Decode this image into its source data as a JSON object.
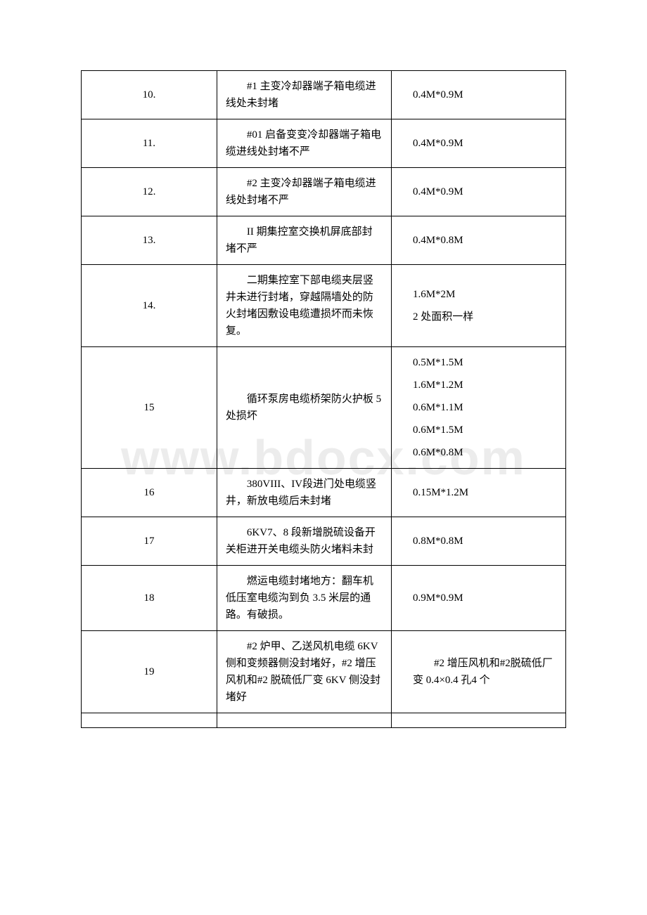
{
  "watermark": "www.bdocx.com",
  "rows": [
    {
      "num": "10.",
      "desc": "#1 主变冷却器端子箱电缆进线处未封堵",
      "dim": "0.4M*0.9M"
    },
    {
      "num": "11.",
      "desc": "#01 启备变变冷却器端子箱电缆进线处封堵不严",
      "dim": "0.4M*0.9M"
    },
    {
      "num": "12.",
      "desc": "#2 主变冷却器端子箱电缆进线处封堵不严",
      "dim": "0.4M*0.9M"
    },
    {
      "num": "13.",
      "desc": "II 期集控室交换机屏底部封堵不严",
      "dim": "0.4M*0.8M"
    },
    {
      "num": "14.",
      "desc": "二期集控室下部电缆夹层竖井未进行封堵，穿越隔墙处的防火封堵因敷设电缆遭损坏而未恢复。",
      "dim_lines": [
        "1.6M*2M",
        "2 处面积一样"
      ]
    },
    {
      "num": "15",
      "desc": "循环泵房电缆桥架防火护板 5 处损坏",
      "dim_lines": [
        "0.5M*1.5M",
        "1.6M*1.2M",
        "0.6M*1.1M",
        "0.6M*1.5M",
        "0.6M*0.8M"
      ]
    },
    {
      "num": "16",
      "desc": "380VIII、IV段进门处电缆竖井，新放电缆后未封堵",
      "dim": "0.15M*1.2M"
    },
    {
      "num": "17",
      "desc": "6KV7、8 段新增脱硫设备开关柜进开关电缆头防火堵料未封",
      "dim": "0.8M*0.8M"
    },
    {
      "num": "18",
      "desc": "燃运电缆封堵地方：翻车机低压室电缆沟到负 3.5 米层的通路。有破损。",
      "dim": "0.9M*0.9M"
    },
    {
      "num": "19",
      "desc": "#2 炉甲、乙送风机电缆 6KV 侧和变频器侧没封堵好，#2 增压风机和#2 脱硫低厂变 6KV 侧没封堵好",
      "dim": "#2 增压风机和#2脱硫低厂变 0.4×0.4 孔4 个"
    }
  ]
}
